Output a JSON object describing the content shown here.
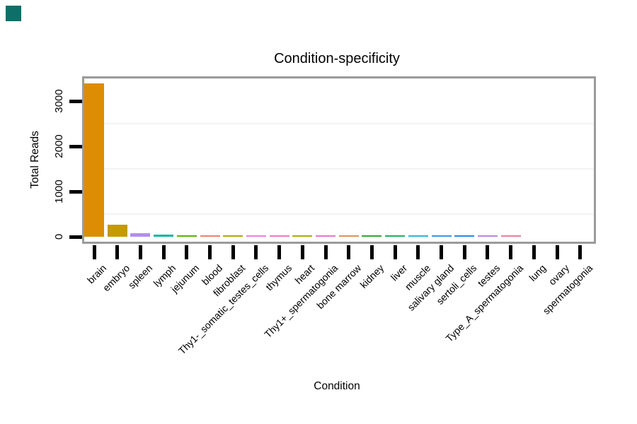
{
  "corner_marker": {
    "color": "#0e6f68"
  },
  "chart_data": {
    "type": "bar",
    "title": "Condition-specificity",
    "xlabel": "Condition",
    "ylabel": "Total Reads",
    "ylim": [
      0,
      3500
    ],
    "yticks": [
      0,
      1000,
      2000,
      3000
    ],
    "minor_gridlines": [
      500,
      1500,
      2500,
      3500
    ],
    "grid": "horizontal minor gridlines only, very light gray on white background",
    "legend_position": "none",
    "categories": [
      "brain",
      "embryo",
      "spleen",
      "lymph",
      "jejunum",
      "blood",
      "fibroblast",
      "Thy1-_somatic_testes_cells",
      "thymus",
      "heart",
      "Thy1+_spermatogonia",
      "bone marrow",
      "kidney",
      "liver",
      "muscle",
      "salivary gland",
      "sertoli_cells",
      "testes",
      "Type_A_spermatogonia",
      "lung",
      "ovary",
      "spermatogonia"
    ],
    "values": [
      3390,
      260,
      80,
      50,
      32,
      28,
      30,
      28,
      28,
      32,
      28,
      28,
      30,
      28,
      28,
      28,
      28,
      28,
      28,
      0,
      0,
      0
    ],
    "bar_colors": [
      "#DD8D03",
      "#C59A03",
      "#B48FF1",
      "#00B89D",
      "#56B301",
      "#F2806D",
      "#B3A900",
      "#ED7DE5",
      "#F675BF",
      "#A9AF00",
      "#EE74CF",
      "#DE9254",
      "#2FA92F",
      "#1DB25F",
      "#2BB7D9",
      "#3399EE",
      "#2189EC",
      "#BC86E3",
      "#EE7D9D",
      "#F07F5E",
      "#EE7F8F",
      "#F37F77"
    ]
  },
  "style": {
    "background_color": "#ffffff",
    "plot_border_color": "#9b9b9b",
    "gridline_color": "#f3f3f3",
    "tick_color": "#000000",
    "text_color": "#000000"
  }
}
